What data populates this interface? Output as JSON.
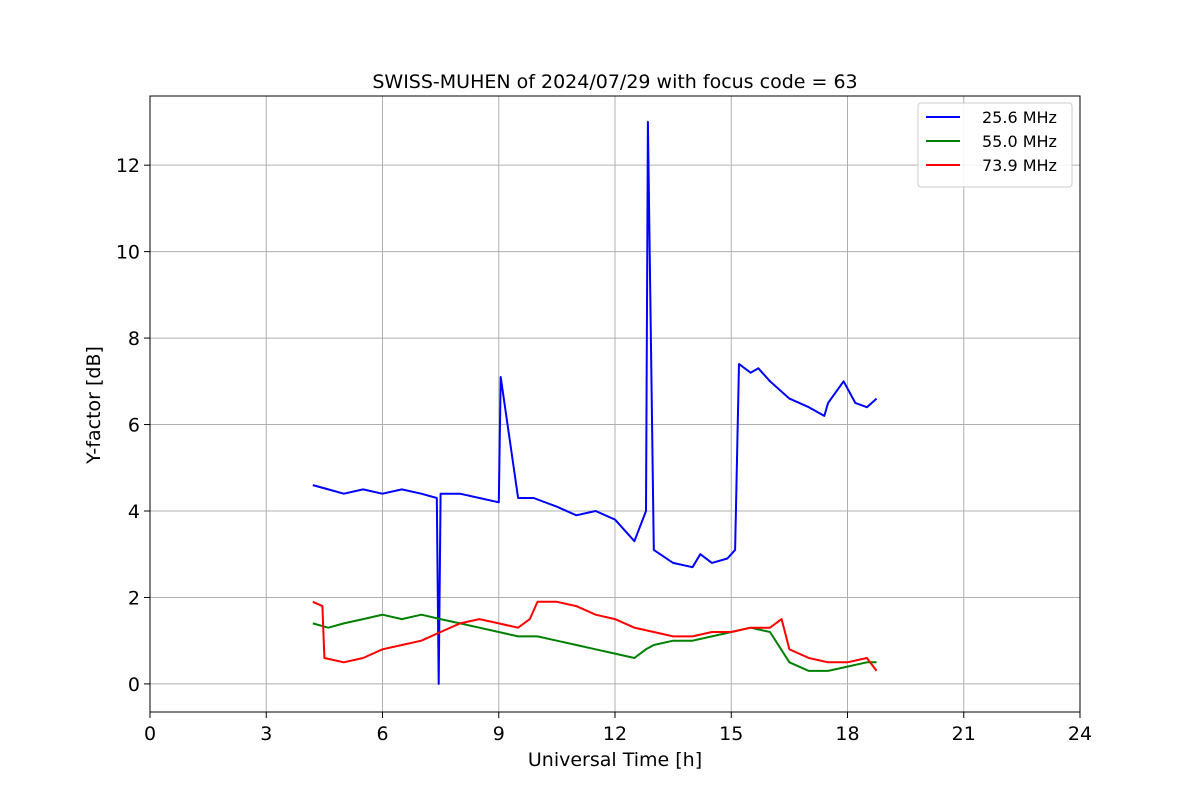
{
  "chart_data": {
    "type": "line",
    "title": "SWISS-MUHEN of 2024/07/29 with focus code = 63",
    "xlabel": "Universal Time [h]",
    "ylabel": "Y-factor [dB]",
    "xlim": [
      0,
      24
    ],
    "ylim": [
      -0.65,
      13.6
    ],
    "xticks": [
      0,
      3,
      6,
      9,
      12,
      15,
      18,
      21,
      24
    ],
    "yticks": [
      0,
      2,
      4,
      6,
      8,
      10,
      12
    ],
    "grid": true,
    "legend_position": "top-right",
    "series": [
      {
        "name": "25.6 MHz",
        "color": "#0000ff",
        "x": [
          4.2,
          4.6,
          5.0,
          5.5,
          6.0,
          6.5,
          7.0,
          7.4,
          7.45,
          7.5,
          8.0,
          8.5,
          9.0,
          9.05,
          9.5,
          9.9,
          10.5,
          11.0,
          11.5,
          12.0,
          12.5,
          12.8,
          12.85,
          13.0,
          13.5,
          14.0,
          14.2,
          14.5,
          14.9,
          15.1,
          15.2,
          15.5,
          15.7,
          16.0,
          16.5,
          17.0,
          17.4,
          17.5,
          17.9,
          18.2,
          18.5,
          18.75
        ],
        "y": [
          4.6,
          4.5,
          4.4,
          4.5,
          4.4,
          4.5,
          4.4,
          4.3,
          0.0,
          4.4,
          4.4,
          4.3,
          4.2,
          7.1,
          4.3,
          4.3,
          4.1,
          3.9,
          4.0,
          3.8,
          3.3,
          4.0,
          13.0,
          3.1,
          2.8,
          2.7,
          3.0,
          2.8,
          2.9,
          3.1,
          7.4,
          7.2,
          7.3,
          7.0,
          6.6,
          6.4,
          6.2,
          6.5,
          7.0,
          6.5,
          6.4,
          6.6
        ]
      },
      {
        "name": "55.0 MHz",
        "color": "#008000",
        "x": [
          4.2,
          4.6,
          5.0,
          5.5,
          6.0,
          6.5,
          7.0,
          7.5,
          8.0,
          8.5,
          9.0,
          9.5,
          10.0,
          10.5,
          11.0,
          11.5,
          12.0,
          12.5,
          12.8,
          13.0,
          13.5,
          14.0,
          14.5,
          15.0,
          15.5,
          16.0,
          16.5,
          17.0,
          17.5,
          18.0,
          18.5,
          18.75
        ],
        "y": [
          1.4,
          1.3,
          1.4,
          1.5,
          1.6,
          1.5,
          1.6,
          1.5,
          1.4,
          1.3,
          1.2,
          1.1,
          1.1,
          1.0,
          0.9,
          0.8,
          0.7,
          0.6,
          0.8,
          0.9,
          1.0,
          1.0,
          1.1,
          1.2,
          1.3,
          1.2,
          0.5,
          0.3,
          0.3,
          0.4,
          0.5,
          0.5
        ]
      },
      {
        "name": "73.9 MHz",
        "color": "#ff0000",
        "x": [
          4.2,
          4.45,
          4.5,
          5.0,
          5.5,
          6.0,
          6.5,
          7.0,
          7.5,
          8.0,
          8.5,
          9.0,
          9.5,
          9.8,
          10.0,
          10.5,
          11.0,
          11.5,
          12.0,
          12.5,
          13.0,
          13.5,
          14.0,
          14.5,
          15.0,
          15.5,
          16.0,
          16.3,
          16.5,
          17.0,
          17.5,
          18.0,
          18.5,
          18.75
        ],
        "y": [
          1.9,
          1.8,
          0.6,
          0.5,
          0.6,
          0.8,
          0.9,
          1.0,
          1.2,
          1.4,
          1.5,
          1.4,
          1.3,
          1.5,
          1.9,
          1.9,
          1.8,
          1.6,
          1.5,
          1.3,
          1.2,
          1.1,
          1.1,
          1.2,
          1.2,
          1.3,
          1.3,
          1.5,
          0.8,
          0.6,
          0.5,
          0.5,
          0.6,
          0.3
        ]
      }
    ]
  }
}
